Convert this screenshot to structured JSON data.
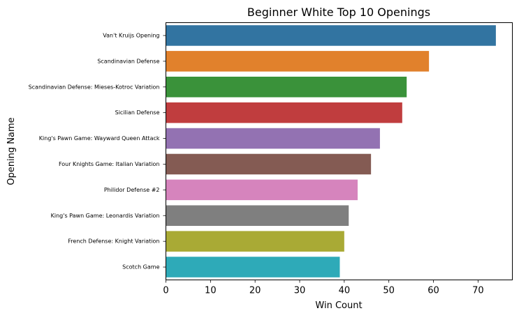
{
  "chart_data": {
    "type": "bar",
    "orientation": "horizontal",
    "title": "Beginner White Top 10 Openings",
    "xlabel": "Win Count",
    "ylabel": "Opening Name",
    "xlim": [
      0,
      77.7
    ],
    "xticks": [
      0,
      10,
      20,
      30,
      40,
      50,
      60,
      70
    ],
    "grid": false,
    "legend": "none",
    "categories": [
      "Van't Kruijs Opening",
      "Scandinavian Defense",
      "Scandinavian Defense: Mieses-Kotroc Variation",
      "Sicilian Defense",
      "King's Pawn Game: Wayward Queen Attack",
      "Four Knights Game: Italian Variation",
      "Philidor Defense #2",
      "King's Pawn Game: Leonardis Variation",
      "French Defense: Knight Variation",
      "Scotch Game"
    ],
    "values": [
      74,
      59,
      54,
      53,
      48,
      46,
      43,
      41,
      40,
      39
    ],
    "colors": [
      "#3274a1",
      "#e1812c",
      "#3a923a",
      "#c03d3e",
      "#9372b2",
      "#845b53",
      "#d684bd",
      "#7f7f7f",
      "#a9aa35",
      "#2eaab8"
    ]
  }
}
